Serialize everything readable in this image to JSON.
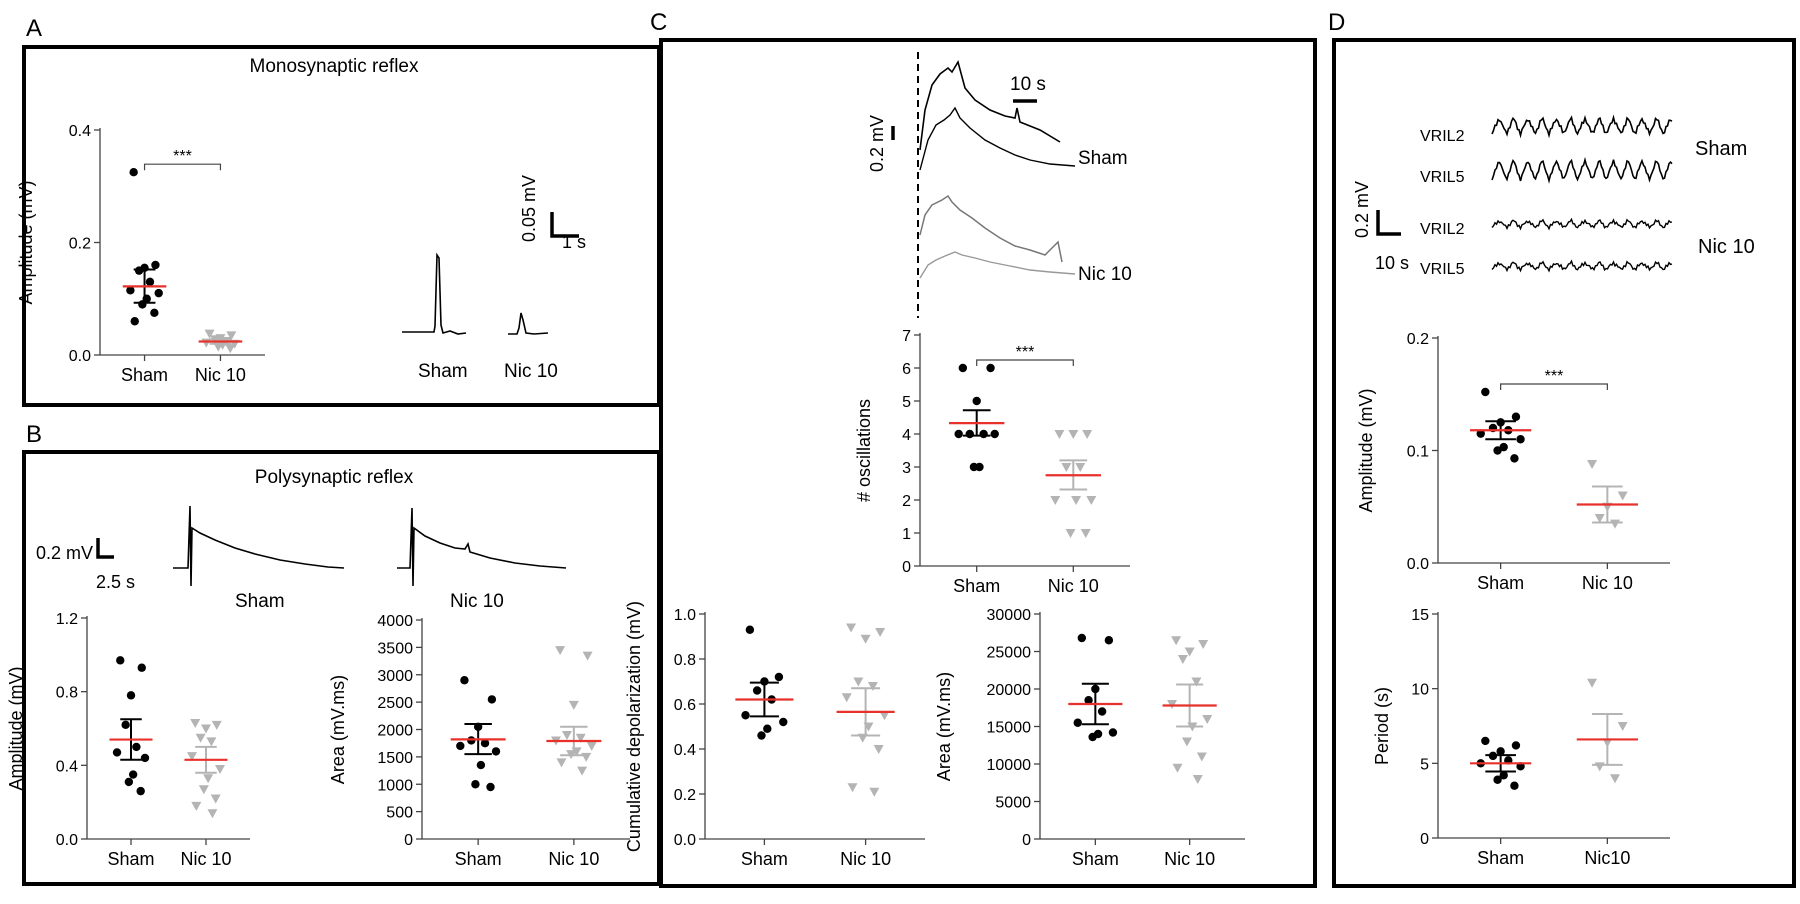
{
  "colors": {
    "sham": "#000000",
    "nic": "#b4b4b4",
    "mean": "#e8312b",
    "frame": "#000000"
  },
  "panels": {
    "A": {
      "letter": "A",
      "title": "Monosynaptic reflex"
    },
    "B": {
      "letter": "B",
      "title": "Polysynaptic reflex"
    },
    "C": {
      "letter": "C"
    },
    "D": {
      "letter": "D"
    }
  },
  "traces": {
    "A": {
      "scale_y": "0.05 mV",
      "scale_x": "1 s",
      "labels": [
        "Sham",
        "Nic 10"
      ]
    },
    "B": {
      "scale_y": "0.2 mV",
      "scale_x": "2.5 s",
      "labels": [
        "Sham",
        "Nic 10"
      ]
    },
    "C": {
      "scale_y": "0.2 mV",
      "scale_x": "10 s",
      "labels": [
        "Sham",
        "Nic 10"
      ]
    },
    "D": {
      "scale_y": "0.2 mV",
      "scale_x": "10 s",
      "roots": [
        "VRIL2",
        "VRIL5",
        "VRIL2",
        "VRIL5"
      ],
      "labels": [
        "Sham",
        "Nic 10"
      ]
    }
  },
  "chart_data": [
    {
      "id": "A",
      "type": "scatter",
      "title": "",
      "ylabel": "Amplitude (mV)",
      "ylim": [
        0,
        0.4
      ],
      "yticks": [
        "0.0",
        "0.2",
        "0.4"
      ],
      "categories": [
        "Sham",
        "Nic 10"
      ],
      "significance": "***",
      "series": [
        {
          "name": "Sham",
          "marker": "circle",
          "values": [
            0.325,
            0.16,
            0.155,
            0.15,
            0.13,
            0.115,
            0.11,
            0.1,
            0.09,
            0.075,
            0.06
          ],
          "mean": 0.122,
          "sem": [
            0.093,
            0.152
          ]
        },
        {
          "name": "Nic 10",
          "marker": "triangle",
          "values": [
            0.038,
            0.035,
            0.03,
            0.028,
            0.025,
            0.022,
            0.02,
            0.018,
            0.015,
            0.012
          ],
          "mean": 0.024,
          "sem": [
            0.02,
            0.028
          ]
        }
      ]
    },
    {
      "id": "B1",
      "type": "scatter",
      "ylabel": "Amplitude (mV)",
      "ylim": [
        0,
        1.2
      ],
      "yticks": [
        "0.0",
        "0.4",
        "0.8",
        "1.2"
      ],
      "categories": [
        "Sham",
        "Nic 10"
      ],
      "series": [
        {
          "name": "Sham",
          "marker": "circle",
          "values": [
            0.97,
            0.93,
            0.78,
            0.62,
            0.5,
            0.47,
            0.44,
            0.35,
            0.31,
            0.26
          ],
          "mean": 0.54,
          "sem": [
            0.43,
            0.65
          ]
        },
        {
          "name": "Nic 10",
          "marker": "triangle",
          "values": [
            0.63,
            0.62,
            0.6,
            0.55,
            0.53,
            0.45,
            0.38,
            0.33,
            0.27,
            0.22,
            0.18,
            0.14
          ],
          "mean": 0.43,
          "sem": [
            0.36,
            0.5
          ]
        }
      ]
    },
    {
      "id": "B2",
      "type": "scatter",
      "ylabel": "Area (mV.ms)",
      "ylim": [
        0,
        4000
      ],
      "yticks": [
        "0",
        "500",
        "1000",
        "1500",
        "2000",
        "2500",
        "3000",
        "3500",
        "4000"
      ],
      "categories": [
        "Sham",
        "Nic 10"
      ],
      "series": [
        {
          "name": "Sham",
          "marker": "circle",
          "values": [
            2900,
            2550,
            2050,
            1800,
            1750,
            1700,
            1600,
            1350,
            1000,
            950
          ],
          "mean": 1820,
          "sem": [
            1550,
            2100
          ]
        },
        {
          "name": "Nic 10",
          "marker": "triangle",
          "values": [
            3450,
            3350,
            2450,
            1900,
            1850,
            1800,
            1700,
            1600,
            1550,
            1500,
            1400,
            1250
          ],
          "mean": 1790,
          "sem": [
            1530,
            2050
          ]
        }
      ]
    },
    {
      "id": "C1",
      "type": "scatter",
      "ylabel": "# oscillations",
      "ylim": [
        0,
        7
      ],
      "yticks": [
        "0",
        "1",
        "2",
        "3",
        "4",
        "5",
        "6",
        "7"
      ],
      "categories": [
        "Sham",
        "Nic 10"
      ],
      "significance": "***",
      "series": [
        {
          "name": "Sham",
          "marker": "circle",
          "values": [
            6,
            6,
            5,
            4,
            4,
            4,
            4,
            3,
            3
          ],
          "mean": 4.33,
          "sem": [
            3.95,
            4.72
          ]
        },
        {
          "name": "Nic 10",
          "marker": "triangle",
          "values": [
            4,
            4,
            4,
            3,
            3,
            2,
            2,
            2,
            1,
            1
          ],
          "mean": 2.75,
          "sem": [
            2.32,
            3.2
          ]
        }
      ]
    },
    {
      "id": "C2",
      "type": "scatter",
      "ylabel": "Cumulative depolarization (mV)",
      "ylim": [
        0,
        1.0
      ],
      "yticks": [
        "0.0",
        "0.2",
        "0.4",
        "0.6",
        "0.8",
        "1.0"
      ],
      "categories": [
        "Sham",
        "Nic 10"
      ],
      "series": [
        {
          "name": "Sham",
          "marker": "circle",
          "values": [
            0.93,
            0.72,
            0.7,
            0.66,
            0.62,
            0.55,
            0.52,
            0.49,
            0.46
          ],
          "mean": 0.62,
          "sem": [
            0.545,
            0.695
          ]
        },
        {
          "name": "Nic 10",
          "marker": "triangle",
          "values": [
            0.94,
            0.92,
            0.89,
            0.7,
            0.68,
            0.63,
            0.55,
            0.5,
            0.45,
            0.4,
            0.23,
            0.21
          ],
          "mean": 0.565,
          "sem": [
            0.46,
            0.67
          ]
        }
      ]
    },
    {
      "id": "C3",
      "type": "scatter",
      "ylabel": "Area (mV.ms)",
      "ylim": [
        0,
        30000
      ],
      "yticks": [
        "0",
        "5000",
        "10000",
        "15000",
        "20000",
        "25000",
        "30000"
      ],
      "categories": [
        "Sham",
        "Nic 10"
      ],
      "series": [
        {
          "name": "Sham",
          "marker": "circle",
          "values": [
            26800,
            26500,
            20000,
            18500,
            17000,
            15500,
            14200,
            14000,
            13600
          ],
          "mean": 18000,
          "sem": [
            15300,
            20700
          ]
        },
        {
          "name": "Nic 10",
          "marker": "triangle",
          "values": [
            26500,
            26000,
            25000,
            24000,
            21000,
            18000,
            16000,
            15000,
            13000,
            11000,
            9500,
            8000
          ],
          "mean": 17800,
          "sem": [
            15000,
            20600
          ]
        }
      ]
    },
    {
      "id": "D1",
      "type": "scatter",
      "ylabel": "Amplitude (mV)",
      "ylim": [
        0,
        0.2
      ],
      "yticks": [
        "0.0",
        "0.1",
        "0.2"
      ],
      "categories": [
        "Sham",
        "Nic 10"
      ],
      "significance": "***",
      "series": [
        {
          "name": "Sham",
          "marker": "circle",
          "values": [
            0.152,
            0.13,
            0.125,
            0.12,
            0.118,
            0.115,
            0.11,
            0.103,
            0.1,
            0.093
          ],
          "mean": 0.118,
          "sem": [
            0.11,
            0.126
          ]
        },
        {
          "name": "Nic 10",
          "marker": "triangle",
          "values": [
            0.088,
            0.06,
            0.05,
            0.04,
            0.035
          ],
          "mean": 0.052,
          "sem": [
            0.036,
            0.068
          ]
        }
      ]
    },
    {
      "id": "D2",
      "type": "scatter",
      "ylabel": "Period (s)",
      "ylim": [
        0,
        15
      ],
      "yticks": [
        "0",
        "5",
        "10",
        "15"
      ],
      "categories": [
        "Sham",
        "Nic10"
      ],
      "series": [
        {
          "name": "Sham",
          "marker": "circle",
          "values": [
            6.5,
            6.2,
            5.8,
            5.5,
            5.2,
            5.0,
            4.8,
            4.2,
            3.9,
            3.5
          ],
          "mean": 5.0,
          "sem": [
            4.45,
            5.55
          ]
        },
        {
          "name": "Nic10",
          "marker": "triangle",
          "values": [
            10.4,
            7.5,
            6.4,
            4.8,
            4.0
          ],
          "mean": 6.6,
          "sem": [
            4.9,
            8.3
          ]
        }
      ]
    }
  ]
}
